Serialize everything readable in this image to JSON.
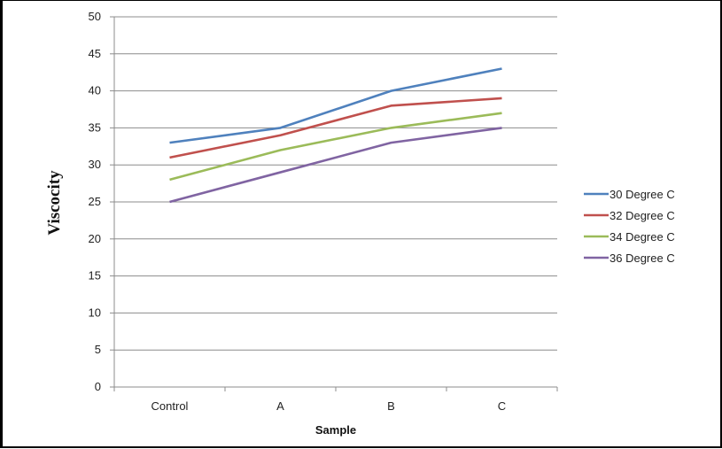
{
  "chart_data": {
    "type": "line",
    "categories": [
      "Control",
      "A",
      "B",
      "C"
    ],
    "series": [
      {
        "name": "30 Degree C",
        "values": [
          33,
          35,
          40,
          43
        ],
        "color": "#4f81bd"
      },
      {
        "name": "32 Degree C",
        "values": [
          31,
          34,
          38,
          39
        ],
        "color": "#c0504d"
      },
      {
        "name": "34 Degree C",
        "values": [
          28,
          32,
          35,
          37
        ],
        "color": "#9bbb59"
      },
      {
        "name": "36 Degree C",
        "values": [
          25,
          29,
          33,
          35
        ],
        "color": "#8064a2"
      }
    ],
    "xlabel": "Sample",
    "ylabel": "Viscocity",
    "ylim": [
      0,
      50
    ],
    "yticks": [
      0,
      5,
      10,
      15,
      20,
      25,
      30,
      35,
      40,
      45,
      50
    ],
    "grid": true,
    "legend_position": "right"
  }
}
